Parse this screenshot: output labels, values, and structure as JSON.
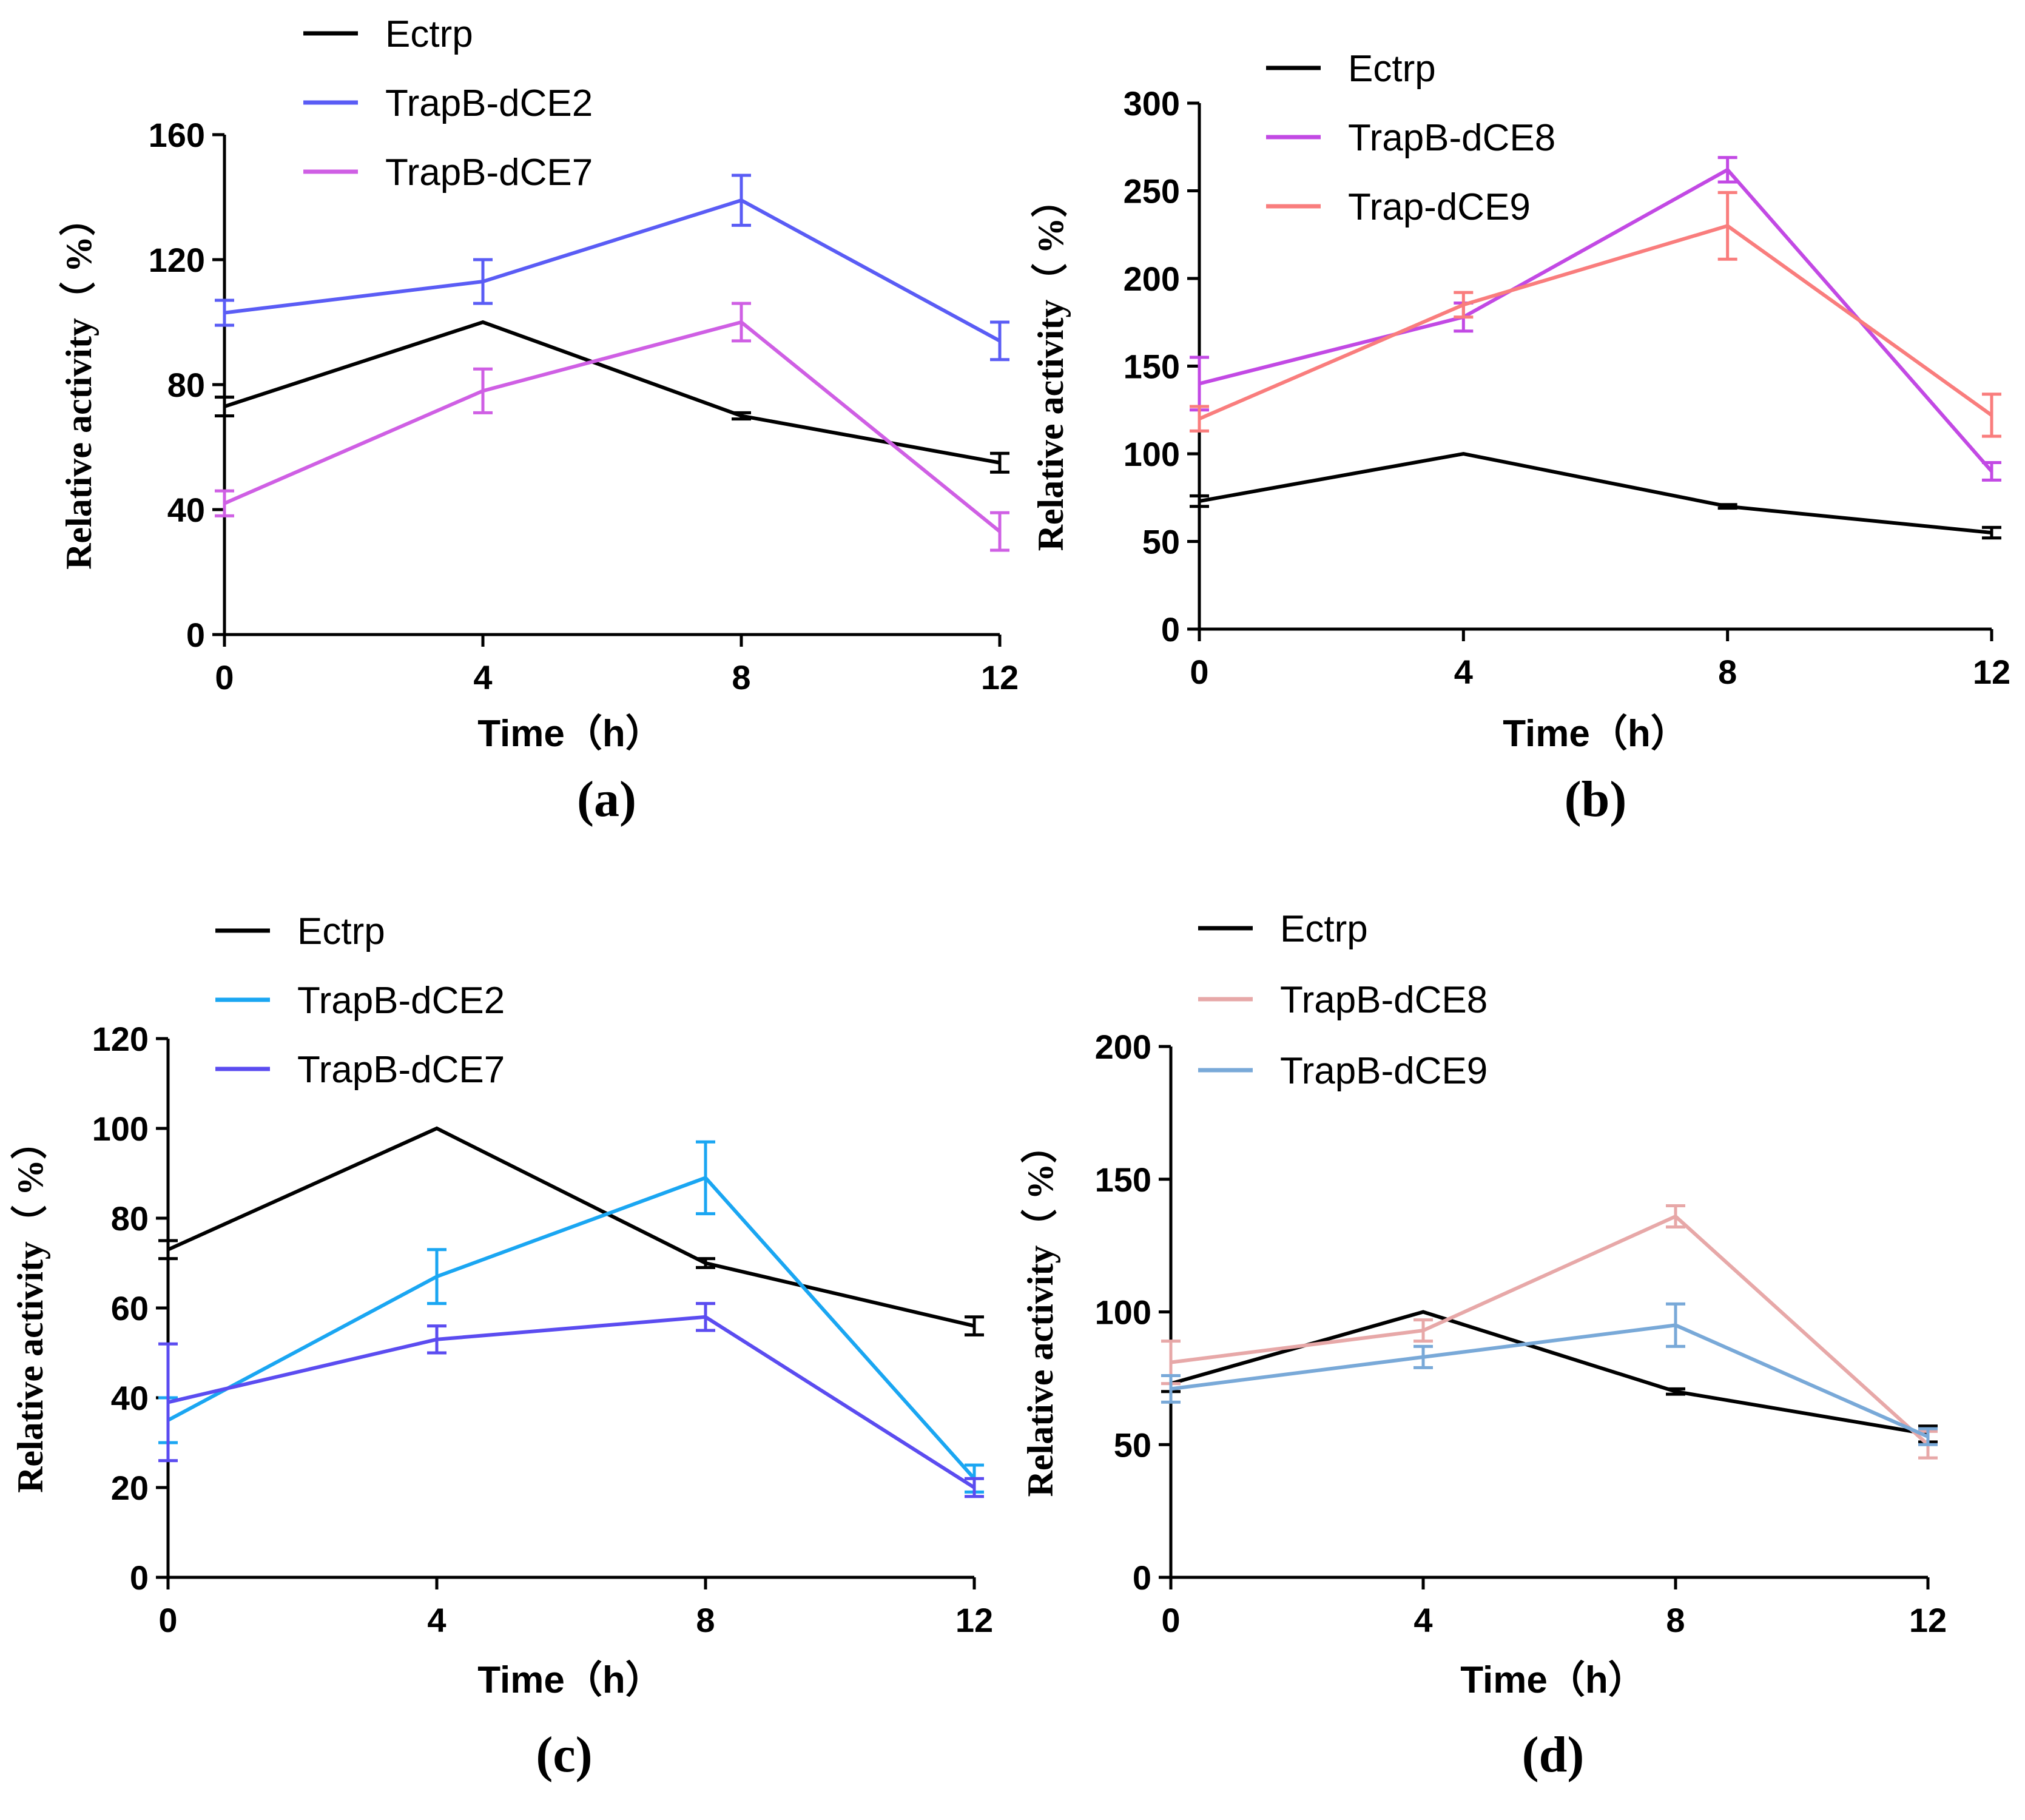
{
  "chart_data": [
    {
      "type": "line",
      "panel_label": "(a)",
      "xlabel": "Time（h）",
      "ylabel": "Relative activity（ %）",
      "x": [
        0,
        4,
        8,
        12
      ],
      "xticks": [
        "0",
        "4",
        "8",
        "12"
      ],
      "ylim": [
        0,
        160
      ],
      "yticks": [
        "0",
        "40",
        "80",
        "120",
        "160"
      ],
      "legend_position": "top",
      "series": [
        {
          "name": "Ectrp",
          "color": "#000000",
          "values": [
            73,
            100,
            70,
            55
          ],
          "errors": [
            3,
            0,
            1,
            3
          ]
        },
        {
          "name": "TrapB-dCE2",
          "color": "#5a5cf5",
          "values": [
            103,
            113,
            139,
            94
          ],
          "errors": [
            4,
            7,
            8,
            6
          ]
        },
        {
          "name": "TrapB-dCE7",
          "color": "#cf5fe4",
          "values": [
            42,
            78,
            100,
            33
          ],
          "errors": [
            4,
            7,
            6,
            6
          ]
        }
      ]
    },
    {
      "type": "line",
      "panel_label": "(b)",
      "xlabel": "Time（h）",
      "ylabel": "Relative activity（ %）",
      "x": [
        0,
        4,
        8,
        12
      ],
      "xticks": [
        "0",
        "4",
        "8",
        "12"
      ],
      "ylim": [
        0,
        300
      ],
      "yticks": [
        "0",
        "50",
        "100",
        "150",
        "200",
        "250",
        "300"
      ],
      "legend_position": "top",
      "series": [
        {
          "name": "Ectrp",
          "color": "#000000",
          "values": [
            73,
            100,
            70,
            55
          ],
          "errors": [
            3,
            0,
            1,
            3
          ]
        },
        {
          "name": "TrapB-dCE8",
          "color": "#c249e4",
          "values": [
            140,
            178,
            262,
            90
          ],
          "errors": [
            15,
            8,
            7,
            5
          ]
        },
        {
          "name": "Trap-dCE9",
          "color": "#f97d7d",
          "values": [
            120,
            185,
            230,
            122
          ],
          "errors": [
            7,
            7,
            19,
            12
          ]
        }
      ]
    },
    {
      "type": "line",
      "panel_label": "(c)",
      "xlabel": "Time（h）",
      "ylabel": "Relative activity（ %）",
      "x": [
        0,
        4,
        8,
        12
      ],
      "xticks": [
        "0",
        "4",
        "8",
        "12"
      ],
      "ylim": [
        0,
        120
      ],
      "yticks": [
        "0",
        "20",
        "40",
        "60",
        "80",
        "100",
        "120"
      ],
      "legend_position": "top",
      "series": [
        {
          "name": "Ectrp",
          "color": "#000000",
          "values": [
            73,
            100,
            70,
            56
          ],
          "errors": [
            2,
            0,
            1,
            2
          ]
        },
        {
          "name": "TrapB-dCE2",
          "color": "#1aa6f2",
          "values": [
            35,
            67,
            89,
            22
          ],
          "errors": [
            5,
            6,
            8,
            3
          ]
        },
        {
          "name": "TrapB-dCE7",
          "color": "#5b4cf0",
          "values": [
            39,
            53,
            58,
            20
          ],
          "errors": [
            13,
            3,
            3,
            2
          ]
        }
      ]
    },
    {
      "type": "line",
      "panel_label": "(d)",
      "xlabel": "Time（h）",
      "ylabel": "Relative activity（ %）",
      "x": [
        0,
        4,
        8,
        12
      ],
      "xticks": [
        "0",
        "4",
        "8",
        "12"
      ],
      "ylim": [
        0,
        200
      ],
      "yticks": [
        "0",
        "50",
        "100",
        "150",
        "200"
      ],
      "legend_position": "top",
      "series": [
        {
          "name": "Ectrp",
          "color": "#000000",
          "values": [
            73,
            100,
            70,
            54
          ],
          "errors": [
            3,
            0,
            1,
            3
          ]
        },
        {
          "name": "TrapB-dCE8",
          "color": "#e7a8a8",
          "values": [
            81,
            93,
            136,
            50
          ],
          "errors": [
            8,
            4,
            4,
            5
          ]
        },
        {
          "name": "TrapB-dCE9",
          "color": "#79a9d8",
          "values": [
            71,
            83,
            95,
            53
          ],
          "errors": [
            5,
            4,
            8,
            3
          ]
        }
      ]
    }
  ]
}
